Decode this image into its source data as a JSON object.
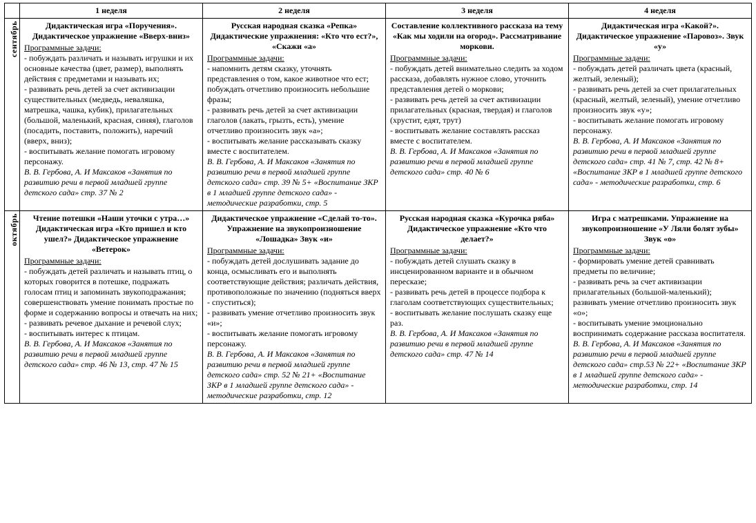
{
  "headers": {
    "month_blank": "",
    "w1": "1 неделя",
    "w2": "2 неделя",
    "w3": "3 неделя",
    "w4": "4 неделя"
  },
  "months": {
    "sep": "сентябрь",
    "oct": "октябрь"
  },
  "labels": {
    "tasks": "Программные задачи:"
  },
  "sep": {
    "w1": {
      "title": "Дидактическая игра «Поручения». Дидактическое упражнение «Вверх-вниз»",
      "body": "- побуждать различать и называть игрушки и их основные качества (цвет, размер), выполнять действия с предметами и называть их;\n- развивать речь детей за счет активизации существительных (медведь, неваляшка, матрешка, чашка, кубик), прилагательных (большой, маленький, красная, синяя), глаголов (посадить, поставить, положить),  наречий (вверх, вниз);\n-  воспитывать желание помогать игровому персонажу.",
      "src": "В. В. Гербова, А. И Максаков «Занятия по развитию речи в первой младшей группе детского сада» стр. 37 № 2"
    },
    "w2": {
      "title": "Русская народная сказка «Репка» Дидактические упражнения: «Кто что ест?», «Скажи «а»",
      "body": "- напомнить детям сказку, уточнять представления о том, какое животное что ест; побуждать отчетливо произносить небольшие фразы;\n- развивать речь детей за счет активизации глаголов (лакать, грызть, есть), умение отчетливо произносить звук «а»;\n- воспитывать желание рассказывать сказку вместе с воспитателем.",
      "src": "В. В. Гербова, А. И Максаков «Занятия по развитию речи в первой младшей группе детского сада» стр. 39 № 5+ «Воспитание ЗКР в 1 младшей группе детского сада» - методические разработки, стр. 5"
    },
    "w3": {
      "title": "Составление коллективного рассказа на тему «Как мы ходили на огород». Рассматривание моркови.",
      "body": "- побуждать детей внимательно следить за ходом рассказа, добавлять нужное слово, уточнить представления детей о моркови;\n- развивать речь детей за счет активизации прилагательных (красная, твердая) и глаголов (хрустит, едят, трут)\n- воспитывать желание составлять рассказ вместе с воспитателем.",
      "src": "В. В. Гербова, А. И Максаков «Занятия по развитию речи в первой младшей группе детского сада» стр. 40 № 6"
    },
    "w4": {
      "title": "Дидактическая игра «Какой?». Дидактическое упражнение «Паровоз». Звук «у»",
      "body": "- побуждать детей различать цвета (красный, желтый, зеленый);\n- развивать речь детей за счет прилагательных (красный, желтый, зеленый), умение отчетливо произносить звук «у»;\n- воспитывать желание помогать игровому персонажу.",
      "src": "В. В. Гербова, А. И Максаков «Занятия по развитию речи в первой младшей группе детского сада» стр. 41 № 7, стр. 42 № 8+ «Воспитание ЗКР в 1 младшей группе детского сада» - методические разработки, стр. 6"
    }
  },
  "oct": {
    "w1": {
      "title": "Чтение потешки «Наши уточки с утра…» Дидактическая игра «Кто пришел и кто ушел?» Дидактическое упражнение «Ветерок»",
      "body": "- побуждать детей различать и называть птиц, о которых говорится в потешке, подражать голосам птиц и запоминать звукоподражания; совершенствовать умение понимать простые по форме и содержанию вопросы и отвечать на них;\n- развивать речевое дыхание и речевой слух;\n- воспитывать интерес к птицам.",
      "src": "В. В. Гербова, А. И Максаков «Занятия по развитию речи в первой младшей группе детского сада» стр. 46 № 13, стр. 47 № 15"
    },
    "w2": {
      "title": "Дидактическое упражнение «Сделай то-то». Упражнение на звукопроизношение «Лошадка» Звук «и»",
      "body": "- побуждать детей дослушивать задание до конца, осмысливать его и выполнять соответствующие действия; различать действия, противоположные по значению (подняться вверх - спуститься);\n- развивать умение отчетливо произносить звук «и»;\n- воспитывать желание помогать игровому персонажу.",
      "src": "В. В. Гербова, А. И Максаков «Занятия по развитию речи в первой младшей группе детского сада» стр. 52 № 21+ «Воспитание ЗКР в 1 младшей группе детского сада» - методические разработки, стр. 12"
    },
    "w3": {
      "title": "Русская народная сказка «Курочка ряба» Дидактическое упражнение «Кто что делает?»",
      "body": "- побуждать детей слушать сказку в инсценированном варианте и в обычном пересказе;\n- развивать речь детей в процессе подбора к глаголам соответствующих существительных;\n- воспитывать желание послушать сказку еще раз.",
      "src": "В. В. Гербова, А. И Максаков «Занятия по развитию речи в первой младшей группе детского сада» стр. 47 № 14"
    },
    "w4": {
      "title": "Игра с матрешками. Упражнение на звукопроизношение «У Ляли болят зубы» Звук «о»",
      "body": "- формировать умение детей сравнивать предметы по величине;\n-   развивать речь за счет активизации прилагательных (большой-маленький); развивать умение отчетливо произносить звук «о»;\n- воспитывать умение эмоционально воспринимать содержание рассказа воспитателя.",
      "src": " В. В. Гербова, А. И Максаков «Занятия по развитию речи в первой младшей группе детского сада» стр.53 № 22+ «Воспитание ЗКР в 1 младшей группе детского сада» - методические разработки, стр. 14"
    }
  }
}
